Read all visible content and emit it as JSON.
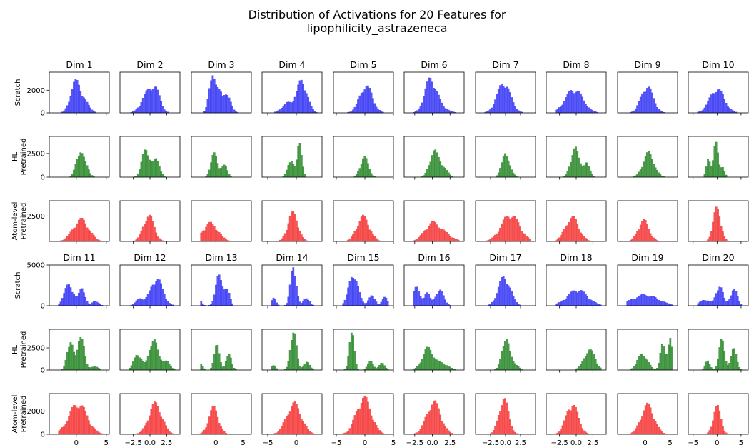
{
  "figure": {
    "title_lines": [
      "Distribution of Activations for 20 Features for",
      "lipophilicity_astrazeneca"
    ]
  },
  "chart_data": {
    "type": "histogram-grid",
    "title": "Distribution of Activations for 20 Features for lipophilicity_astrazeneca",
    "colors": {
      "Scratch": "#3b3bf5",
      "HL Pretrained": "#2e8b2e",
      "Atom-level Pretrained": "#f53b3b"
    },
    "row_labels": [
      [
        "Scratch"
      ],
      [
        "HL",
        "Pretrained"
      ],
      [
        "Atom-level",
        "Pretrained"
      ],
      [
        "Scratch"
      ],
      [
        "HL",
        "Pretrained"
      ],
      [
        "Atom-level",
        "Pretrained"
      ]
    ],
    "row_groups": [
      "Scratch",
      "HL Pretrained",
      "Atom-level Pretrained",
      "Scratch",
      "HL Pretrained",
      "Atom-level Pretrained"
    ],
    "row_ymax": [
      3600,
      4300,
      4000,
      5000,
      4600,
      3500
    ],
    "row_yticks": [
      [
        0,
        2000
      ],
      [
        0,
        2500
      ],
      [
        2500
      ],
      [
        0,
        5000
      ],
      [
        0,
        2500
      ],
      [
        0,
        2000
      ]
    ],
    "dim_titles": [
      "Dim 1",
      "Dim 2",
      "Dim 3",
      "Dim 4",
      "Dim 5",
      "Dim 6",
      "Dim 7",
      "Dim 8",
      "Dim 9",
      "Dim 10",
      "Dim 11",
      "Dim 12",
      "Dim 13",
      "Dim 14",
      "Dim 15",
      "Dim 16",
      "Dim 17",
      "Dim 18",
      "Dim 19",
      "Dim 20"
    ],
    "col_xlim": [
      [
        -4.5,
        5.5
      ],
      [
        -4.5,
        4.5
      ],
      [
        -4.5,
        6.5
      ],
      [
        -6,
        4.5
      ],
      [
        -5.5,
        5
      ],
      [
        -4,
        4.5
      ],
      [
        -5,
        5
      ],
      [
        -4.5,
        4.5
      ],
      [
        -5.5,
        6.5
      ],
      [
        -6,
        6.5
      ]
    ],
    "col_xticks": [
      [
        {
          "v": 0,
          "label": "0"
        },
        {
          "v": 5,
          "label": "5"
        }
      ],
      [
        {
          "v": -2.5,
          "label": "−2.5"
        },
        {
          "v": 0,
          "label": "0.0"
        },
        {
          "v": 2.5,
          "label": "2.5"
        }
      ],
      [
        {
          "v": 0,
          "label": "0"
        },
        {
          "v": 5,
          "label": "5"
        }
      ],
      [
        {
          "v": -5,
          "label": "−5"
        },
        {
          "v": 0,
          "label": "0"
        }
      ],
      [
        {
          "v": -5,
          "label": "−5"
        },
        {
          "v": 0,
          "label": "0"
        },
        {
          "v": 5,
          "label": "5"
        }
      ],
      [
        {
          "v": -2.5,
          "label": "−2.5"
        },
        {
          "v": 0,
          "label": "0.0"
        },
        {
          "v": 2.5,
          "label": "2.5"
        }
      ],
      [
        {
          "v": -2.5,
          "label": "−2.5"
        },
        {
          "v": 0,
          "label": "0.0"
        },
        {
          "v": 2.5,
          "label": "2.5"
        }
      ],
      [
        {
          "v": -2.5,
          "label": "−2.5"
        },
        {
          "v": 0,
          "label": "0.0"
        },
        {
          "v": 2.5,
          "label": "2.5"
        }
      ],
      [
        {
          "v": 0,
          "label": "0"
        },
        {
          "v": 5,
          "label": "5"
        }
      ],
      [
        {
          "v": -5,
          "label": "−5"
        },
        {
          "v": 0,
          "label": "0"
        },
        {
          "v": 5,
          "label": "5"
        }
      ]
    ],
    "histograms": [
      [
        {
          "mix": [
            [
              1,
              -0.2,
              0.8
            ],
            [
              0.4,
              1.2,
              0.9
            ]
          ],
          "peak": 3000
        },
        {
          "mix": [
            [
              0.6,
              -0.4,
              0.9
            ],
            [
              0.6,
              0.9,
              0.7
            ]
          ],
          "peak": 2300
        },
        {
          "mix": [
            [
              0.8,
              -0.8,
              0.5
            ],
            [
              0.5,
              0.6,
              0.8
            ],
            [
              0.3,
              2.2,
              0.7
            ]
          ],
          "peak": 3300
        },
        {
          "mix": [
            [
              0.3,
              -1.5,
              1.0
            ],
            [
              1,
              1.0,
              0.9
            ]
          ],
          "peak": 2900
        },
        {
          "mix": [
            [
              1,
              0.2,
              1.1
            ]
          ],
          "peak": 2400
        },
        {
          "mix": [
            [
              1,
              -0.3,
              0.8
            ],
            [
              0.2,
              1.0,
              1.0
            ]
          ],
          "peak": 3100
        },
        {
          "mix": [
            [
              1,
              -0.3,
              1.1
            ]
          ],
          "peak": 2500
        },
        {
          "mix": [
            [
              1,
              -0.3,
              1.3
            ]
          ],
          "peak": 2000
        },
        {
          "mix": [
            [
              1,
              0.4,
              1.2
            ]
          ],
          "peak": 2300
        },
        {
          "mix": [
            [
              1,
              0.0,
              1.5
            ]
          ],
          "peak": 2100
        }
      ],
      [
        {
          "mix": [
            [
              1,
              0.6,
              0.6
            ],
            [
              0.3,
              1.8,
              0.5
            ]
          ],
          "peak": 2600
        },
        {
          "mix": [
            [
              1,
              -0.6,
              0.6
            ],
            [
              0.6,
              1.0,
              0.5
            ]
          ],
          "peak": 2900
        },
        {
          "mix": [
            [
              1,
              -0.3,
              0.6
            ],
            [
              0.5,
              1.5,
              0.6
            ]
          ],
          "peak": 2600
        },
        {
          "mix": [
            [
              0.5,
              -1.0,
              0.5
            ],
            [
              1,
              0.6,
              0.4
            ]
          ],
          "peak": 3600
        },
        {
          "mix": [
            [
              1,
              -0.1,
              0.7
            ]
          ],
          "peak": 2200
        },
        {
          "mix": [
            [
              1,
              0.2,
              0.6
            ],
            [
              0.4,
              1.5,
              0.6
            ]
          ],
          "peak": 2900
        },
        {
          "mix": [
            [
              1,
              -0.3,
              0.5
            ],
            [
              0.5,
              0.6,
              0.6
            ]
          ],
          "peak": 2500
        },
        {
          "mix": [
            [
              1,
              -0.2,
              0.6
            ],
            [
              0.5,
              1.5,
              0.5
            ]
          ],
          "peak": 3200
        },
        {
          "mix": [
            [
              1,
              0.7,
              1.1
            ]
          ],
          "peak": 2700
        },
        {
          "mix": [
            [
              0.5,
              -1.8,
              0.4
            ],
            [
              1,
              -0.3,
              0.5
            ],
            [
              0.3,
              1.2,
              0.4
            ]
          ],
          "peak": 3700
        }
      ],
      [
        {
          "mix": [
            [
              1,
              0.8,
              1.3
            ]
          ],
          "peak": 2300
        },
        {
          "mix": [
            [
              1,
              -0.2,
              0.8
            ]
          ],
          "peak": 2600
        },
        {
          "mix": [
            [
              1,
              -1.0,
              1.4
            ]
          ],
          "peak": 1900
        },
        {
          "mix": [
            [
              1,
              -0.6,
              0.9
            ]
          ],
          "peak": 3000
        },
        {
          "mix": [
            [
              1,
              -0.3,
              1.1
            ]
          ],
          "peak": 2600
        },
        {
          "mix": [
            [
              1,
              0.0,
              1.1
            ],
            [
              0.3,
              2.0,
              1.0
            ]
          ],
          "peak": 2000
        },
        {
          "mix": [
            [
              1,
              0.8,
              1.5
            ]
          ],
          "peak": 2500
        },
        {
          "mix": [
            [
              1,
              -0.6,
              1.0
            ]
          ],
          "peak": 2500
        },
        {
          "mix": [
            [
              1,
              -0.3,
              1.1
            ]
          ],
          "peak": 2200
        },
        {
          "mix": [
            [
              1,
              0.0,
              0.8
            ]
          ],
          "peak": 3400
        }
      ],
      [
        {
          "mix": [
            [
              0.6,
              -1.2,
              0.8
            ],
            [
              0.5,
              1.0,
              0.5
            ],
            [
              0.15,
              3.2,
              0.5
            ]
          ],
          "peak": 2600
        },
        {
          "mix": [
            [
              0.25,
              -1.5,
              0.6
            ],
            [
              1,
              1.0,
              0.9
            ]
          ],
          "peak": 3300
        },
        {
          "mix": [
            [
              0.2,
              -3.0,
              0.4
            ],
            [
              0.8,
              0.5,
              0.6
            ],
            [
              0.5,
              2.0,
              0.5
            ]
          ],
          "peak": 3800
        },
        {
          "mix": [
            [
              0.2,
              -4.0,
              0.4
            ],
            [
              1,
              -0.5,
              0.5
            ],
            [
              0.2,
              1.8,
              0.5
            ]
          ],
          "peak": 4700
        },
        {
          "mix": [
            [
              1,
              -2.0,
              0.8
            ],
            [
              0.3,
              1.2,
              0.6
            ],
            [
              0.25,
              3.5,
              0.5
            ]
          ],
          "peak": 3500
        },
        {
          "mix": [
            [
              0.7,
              -2.3,
              0.5
            ],
            [
              0.5,
              -0.8,
              0.4
            ],
            [
              0.6,
              1.0,
              0.6
            ]
          ],
          "peak": 2300
        },
        {
          "mix": [
            [
              1,
              -0.2,
              1.0
            ]
          ],
          "peak": 3600
        },
        {
          "mix": [
            [
              1,
              0.2,
              1.5
            ]
          ],
          "peak": 1900
        },
        {
          "mix": [
            [
              1,
              0.0,
              2.6
            ]
          ],
          "peak": 1400
        },
        {
          "mix": [
            [
              0.3,
              -2.5,
              1.0
            ],
            [
              1,
              0.5,
              0.7
            ],
            [
              0.8,
              3.5,
              0.7
            ]
          ],
          "peak": 2300
        }
      ],
      [
        {
          "mix": [
            [
              0.8,
              -1.0,
              0.5
            ],
            [
              1,
              0.8,
              0.5
            ],
            [
              0.1,
              3.0,
              0.6
            ]
          ],
          "peak": 3700
        },
        {
          "mix": [
            [
              0.5,
              -1.8,
              0.6
            ],
            [
              1,
              0.5,
              0.6
            ],
            [
              0.3,
              2.3,
              0.6
            ]
          ],
          "peak": 3500
        },
        {
          "mix": [
            [
              0.2,
              -2.8,
              0.4
            ],
            [
              0.8,
              0.2,
              0.5
            ],
            [
              0.5,
              2.4,
              0.5
            ]
          ],
          "peak": 2800
        },
        {
          "mix": [
            [
              0.1,
              -4.0,
              0.4
            ],
            [
              1,
              -0.5,
              0.5
            ],
            [
              0.2,
              1.8,
              0.5
            ]
          ],
          "peak": 4200
        },
        {
          "mix": [
            [
              1,
              -2.3,
              0.4
            ],
            [
              0.2,
              1.0,
              0.5
            ],
            [
              0.15,
              3.0,
              0.5
            ]
          ],
          "peak": 4200
        },
        {
          "mix": [
            [
              1,
              -0.6,
              0.8
            ],
            [
              0.3,
              1.5,
              0.8
            ]
          ],
          "peak": 2600
        },
        {
          "mix": [
            [
              1,
              0.0,
              0.6
            ],
            [
              0.2,
              1.5,
              0.6
            ]
          ],
          "peak": 3500
        },
        {
          "mix": [
            [
              1,
              2.0,
              0.8
            ]
          ],
          "peak": 2400
        },
        {
          "mix": [
            [
              0.4,
              -0.5,
              1.0
            ],
            [
              0.6,
              3.5,
              0.5
            ],
            [
              0.9,
              5.0,
              0.4
            ]
          ],
          "peak": 3600
        },
        {
          "mix": [
            [
              0.3,
              -2.0,
              0.5
            ],
            [
              1,
              1.0,
              0.6
            ],
            [
              0.7,
              3.5,
              0.6
            ]
          ],
          "peak": 3500
        }
      ],
      [
        {
          "mix": [
            [
              1,
              0.3,
              1.5
            ]
          ],
          "peak": 2500
        },
        {
          "mix": [
            [
              1,
              0.8,
              1.0
            ]
          ],
          "peak": 2800
        },
        {
          "mix": [
            [
              1,
              -0.4,
              0.9
            ]
          ],
          "peak": 2400
        },
        {
          "mix": [
            [
              1,
              -0.4,
              1.3
            ]
          ],
          "peak": 2800
        },
        {
          "mix": [
            [
              1,
              -0.2,
              1.3
            ]
          ],
          "peak": 3300
        },
        {
          "mix": [
            [
              1,
              0.2,
              1.0
            ]
          ],
          "peak": 2900
        },
        {
          "mix": [
            [
              1,
              -0.3,
              0.8
            ]
          ],
          "peak": 3100
        },
        {
          "mix": [
            [
              1,
              -0.6,
              0.9
            ]
          ],
          "peak": 2500
        },
        {
          "mix": [
            [
              1,
              0.5,
              1.3
            ]
          ],
          "peak": 2700
        },
        {
          "mix": [
            [
              1,
              0.0,
              0.8
            ]
          ],
          "peak": 2500
        }
      ]
    ]
  }
}
